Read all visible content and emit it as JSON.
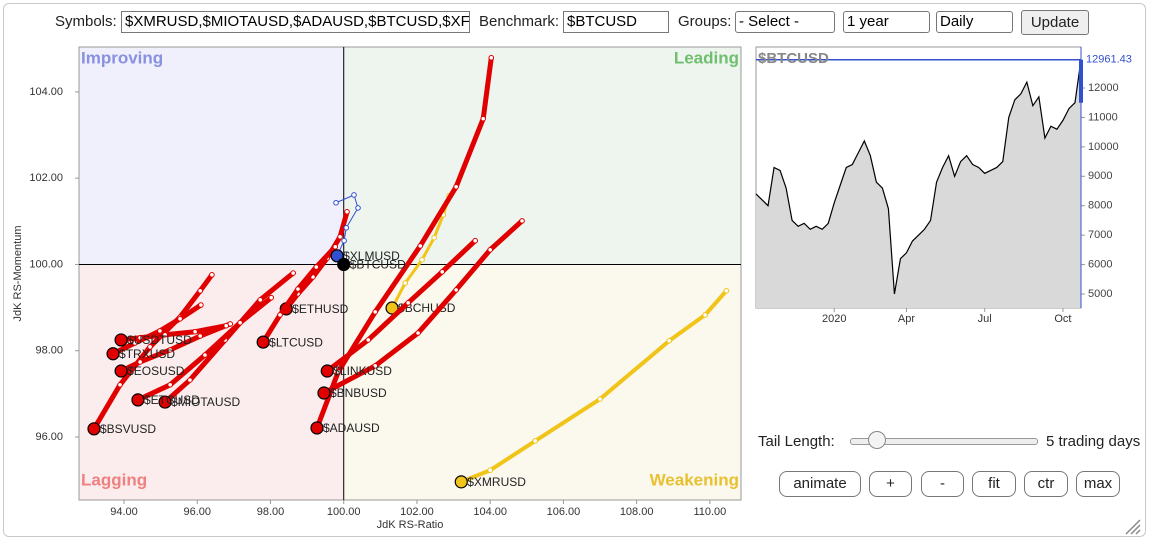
{
  "controls": {
    "symbols_label": "Symbols:",
    "symbols_value": "$XMRUSD,$MIOTAUSD,$ADAUSD,$BTCUSD,$XF",
    "benchmark_label": "Benchmark:",
    "benchmark_value": "$BTCUSD",
    "groups_label": "Groups:",
    "groups_select": "- Select -",
    "period_select": "1 year",
    "interval_select": "Daily",
    "update_button": "Update",
    "tail_label": "Tail Length:",
    "tail_value": "5 trading days",
    "buttons": [
      "animate",
      "+",
      "-",
      "fit",
      "ctr",
      "max"
    ]
  },
  "chart_data": [
    {
      "type": "scatter",
      "xlabel": "JdK RS-Ratio",
      "ylabel": "JdK RS-Momentum",
      "quadrant_labels": [
        "Improving",
        "Leading",
        "Lagging",
        "Weakening"
      ],
      "quadrant_colors": [
        "#8890e0",
        "#6fbf6f",
        "#f08080",
        "#e8c030"
      ],
      "quadrant_fills": [
        "#eff0fb",
        "#eef5ee",
        "#fbeced",
        "#fbf8ee"
      ],
      "center": 100,
      "xlim": [
        92.77,
        110.85
      ],
      "ylim": [
        94.54,
        105.04
      ],
      "xticks": [
        {
          "value": 94,
          "label": "94.00"
        },
        {
          "value": 96,
          "label": "96.00"
        },
        {
          "value": 98,
          "label": "98.00"
        },
        {
          "value": 100,
          "label": "100.00"
        },
        {
          "value": 102,
          "label": "102.00"
        },
        {
          "value": 104,
          "label": "104.00"
        },
        {
          "value": 106,
          "label": "106.00"
        },
        {
          "value": 108,
          "label": "108.00"
        },
        {
          "value": 110,
          "label": "110.00"
        }
      ],
      "yticks": [
        {
          "value": 96,
          "label": "96.00"
        },
        {
          "value": 98,
          "label": "98.00"
        },
        {
          "value": 100,
          "label": "100.00"
        },
        {
          "value": 102,
          "label": "102.00"
        },
        {
          "value": 104,
          "label": "104.00"
        }
      ],
      "series": [
        {
          "name": "$XMRUSD",
          "color": "#f0c419",
          "line_width": 4,
          "x": [
            110.45,
            109.87,
            108.89,
            107.0,
            105.23,
            104.0,
            103.21
          ],
          "values": [
            99.39,
            98.83,
            98.23,
            96.88,
            95.91,
            95.23,
            94.96
          ]
        },
        {
          "name": "$BCHUSD",
          "color": "#f0c419",
          "line_width": 3,
          "x": [
            102.88,
            102.72,
            102.47,
            102.14,
            101.68,
            101.32
          ],
          "values": [
            101.59,
            101.15,
            100.62,
            100.11,
            99.57,
            98.99
          ]
        },
        {
          "name": "$ADAUSD",
          "color": "#e00000",
          "line_width": 5,
          "x": [
            104.03,
            103.81,
            103.07,
            102.09,
            100.86,
            99.85,
            99.27
          ],
          "values": [
            104.79,
            103.38,
            101.8,
            100.43,
            98.9,
            97.51,
            96.21
          ]
        },
        {
          "name": "$BNBUSD",
          "color": "#e00000",
          "line_width": 5,
          "x": [
            104.87,
            104.0,
            103.07,
            102.03,
            100.86,
            99.46
          ],
          "values": [
            101.01,
            100.34,
            99.41,
            98.41,
            97.65,
            97.02
          ]
        },
        {
          "name": "$LINKUSD",
          "color": "#e00000",
          "line_width": 5,
          "x": [
            103.59,
            102.69,
            101.76,
            100.67,
            99.55
          ],
          "values": [
            100.55,
            99.83,
            99.11,
            98.25,
            97.53
          ]
        },
        {
          "name": "$ETHUSD",
          "color": "#e00000",
          "line_width": 5,
          "x": [
            100.09,
            99.9,
            99.55,
            99.16,
            98.75,
            98.43
          ],
          "values": [
            101.22,
            100.64,
            100.15,
            99.71,
            99.32,
            98.97
          ]
        },
        {
          "name": "$LTCUSD",
          "color": "#e00000",
          "line_width": 5,
          "x": [
            99.77,
            99.25,
            98.75,
            98.26,
            97.8
          ],
          "values": [
            100.41,
            99.94,
            99.43,
            98.83,
            98.2
          ]
        },
        {
          "name": "$MIOTAUSD",
          "color": "#e00000",
          "line_width": 5,
          "x": [
            98.62,
            97.72,
            96.76,
            95.8,
            95.12
          ],
          "values": [
            99.8,
            99.18,
            98.25,
            97.32,
            96.81
          ]
        },
        {
          "name": "$ETCUSD",
          "color": "#e00000",
          "line_width": 5,
          "x": [
            98.02,
            97.17,
            96.21,
            95.26,
            94.38
          ],
          "values": [
            99.23,
            98.65,
            97.9,
            97.21,
            96.86
          ]
        },
        {
          "name": "$BSVUSD",
          "color": "#e00000",
          "line_width": 5,
          "x": [
            96.4,
            96.08,
            95.53,
            94.71,
            93.89,
            93.18
          ],
          "values": [
            99.76,
            99.39,
            98.78,
            98.09,
            97.21,
            96.19
          ]
        },
        {
          "name": "$EOSUSD",
          "color": "#e00000",
          "line_width": 5,
          "x": [
            96.9,
            96.08,
            95.26,
            94.44,
            93.92
          ],
          "values": [
            98.62,
            98.34,
            98.02,
            97.74,
            97.53
          ]
        },
        {
          "name": "$TRXUSD",
          "color": "#e00000",
          "line_width": 5,
          "x": [
            96.1,
            95.53,
            94.98,
            94.3,
            93.7
          ],
          "values": [
            99.06,
            98.74,
            98.46,
            98.18,
            97.93
          ]
        },
        {
          "name": "$USDTUSD",
          "color": "#e00000",
          "line_width": 5,
          "x": [
            96.79,
            95.94,
            95.12,
            94.44,
            93.92
          ],
          "values": [
            98.58,
            98.44,
            98.37,
            98.3,
            98.25
          ]
        },
        {
          "name": "$XLMUSD",
          "color": "#3050d0",
          "line_width": 1,
          "x": [
            99.79,
            100.28,
            100.39,
            100.07,
            100.01,
            99.82
          ],
          "values": [
            101.43,
            101.61,
            101.31,
            100.85,
            100.55,
            100.2
          ]
        },
        {
          "name": "$BTCUSD",
          "color": "#000000",
          "line_width": 1,
          "x": [
            100.0
          ],
          "values": [
            100.0
          ]
        }
      ]
    },
    {
      "type": "line",
      "title": "$BTCUSD",
      "color": "#000000",
      "area_color": "#d9d9d9",
      "axis_color": "#3050d0",
      "categories": [
        null,
        null,
        null,
        null,
        null,
        null,
        null,
        null,
        null,
        null,
        null,
        null,
        null,
        "2020",
        null,
        null,
        null,
        null,
        null,
        null,
        null,
        null,
        null,
        null,
        null,
        "Apr",
        null,
        null,
        null,
        null,
        null,
        null,
        null,
        null,
        null,
        null,
        null,
        null,
        "Jul",
        null,
        null,
        null,
        null,
        null,
        null,
        null,
        null,
        null,
        null,
        null,
        null,
        "Oct",
        null,
        null,
        null
      ],
      "values": [
        8400,
        8200,
        8000,
        9300,
        9200,
        8600,
        7500,
        7300,
        7400,
        7200,
        7300,
        7200,
        7400,
        8100,
        8700,
        9300,
        9400,
        9800,
        10200,
        9700,
        8800,
        8600,
        7900,
        5000,
        6200,
        6400,
        6800,
        7000,
        7200,
        7500,
        8800,
        9300,
        9700,
        9000,
        9500,
        9700,
        9400,
        9300,
        9100,
        9200,
        9300,
        9500,
        11000,
        11600,
        11800,
        12200,
        11400,
        11700,
        10300,
        10700,
        10600,
        10900,
        11300,
        11500,
        12961.43
      ],
      "ylim": [
        4524,
        13394
      ],
      "yticks": [
        5000,
        6000,
        7000,
        8000,
        9000,
        10000,
        11000,
        12000
      ]
    }
  ]
}
